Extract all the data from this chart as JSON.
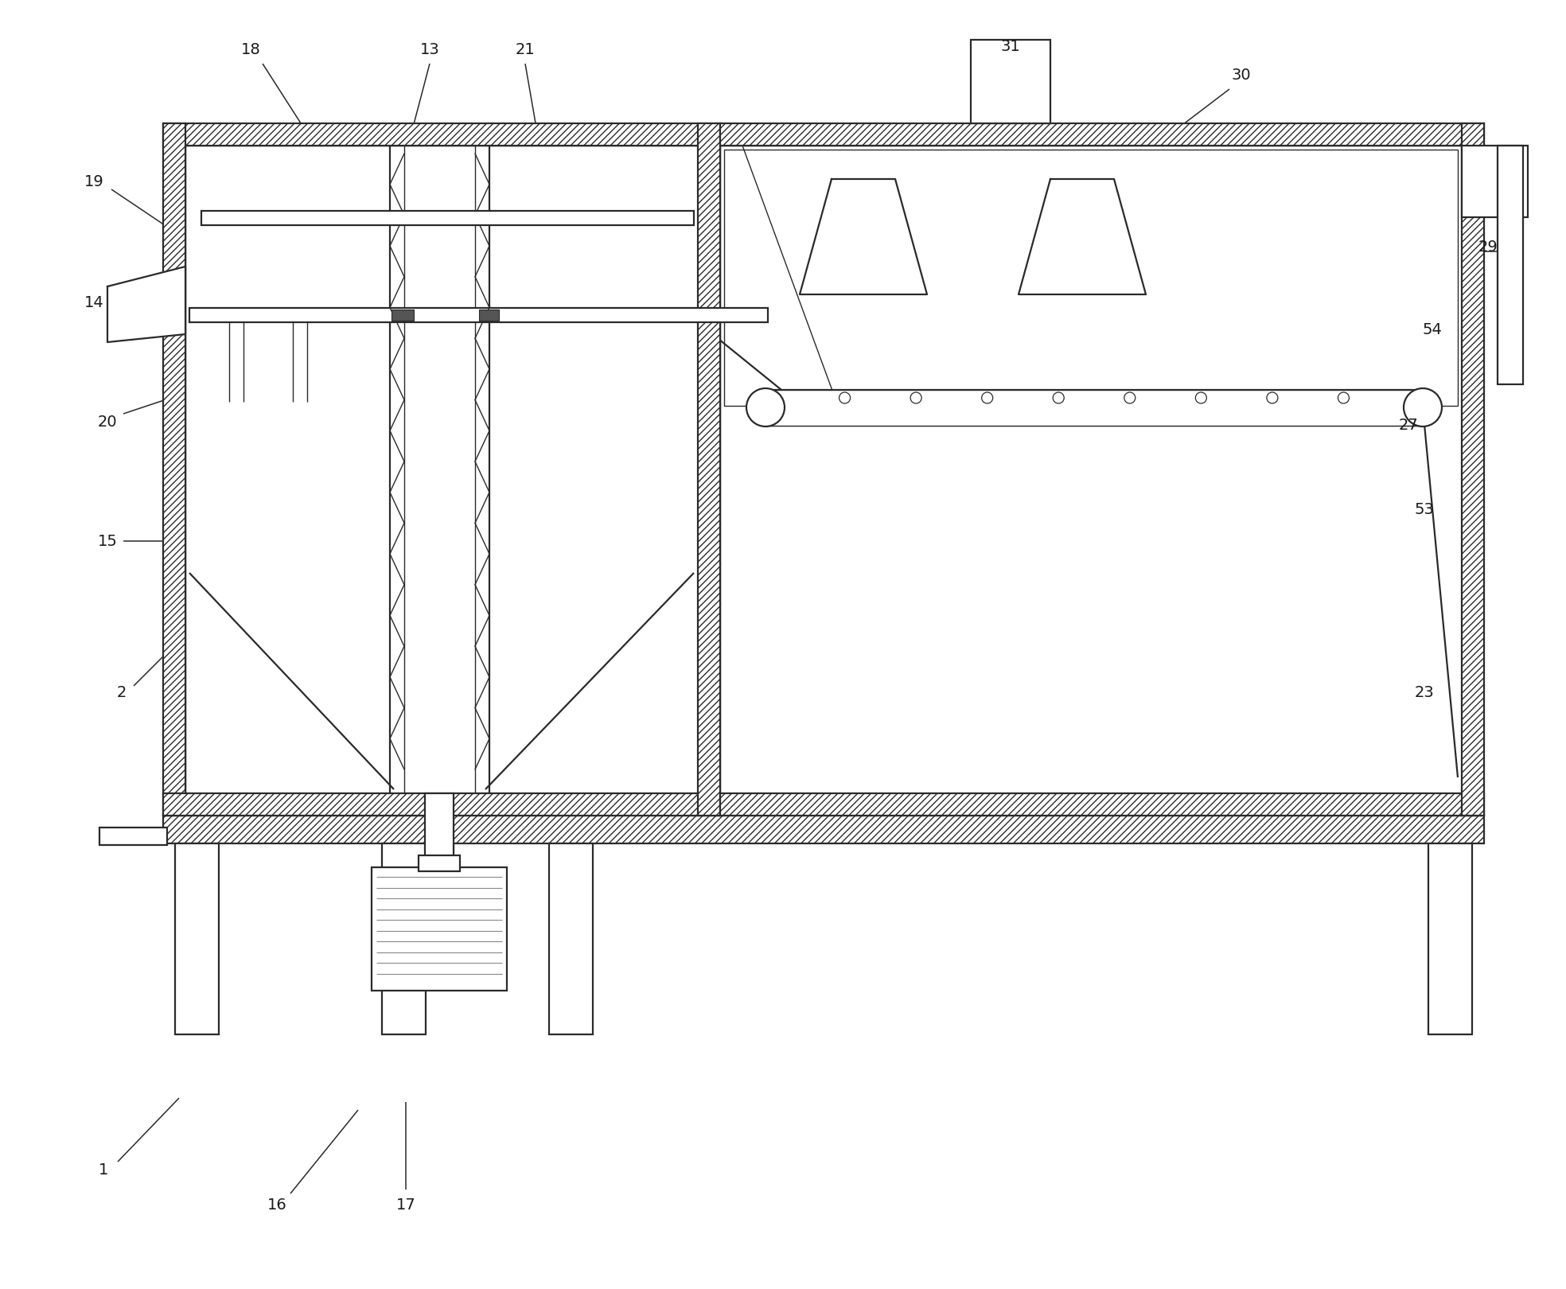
{
  "bg_color": "#ffffff",
  "line_color": "#2a2a2a",
  "label_color": "#1a1a1a",
  "label_fontsize": 14,
  "lw_main": 1.6,
  "lw_thin": 1.0,
  "lw_thick": 2.2
}
